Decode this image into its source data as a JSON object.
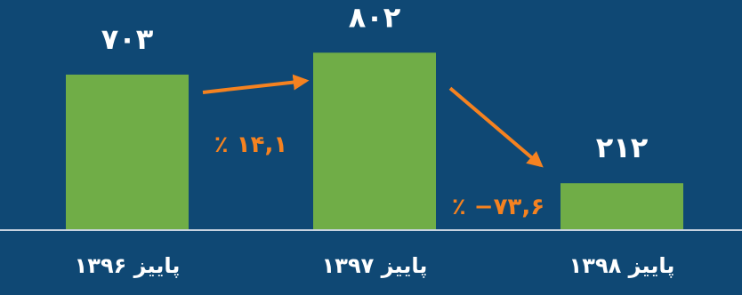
{
  "colors": {
    "background": "#0f4874",
    "bar": "#70ad47",
    "axis": "#c8d3e0",
    "text": "#ffffff",
    "arrow": "#f58220"
  },
  "chart_data": {
    "type": "bar",
    "title": "",
    "xlabel": "",
    "ylabel": "",
    "categories": [
      "پاییز ۱۳۹۶",
      "پاییز ۱۳۹۷",
      "پاییز ۱۳۹۸"
    ],
    "values": [
      703,
      802,
      212
    ],
    "value_labels": [
      "۷۰۳",
      "۸۰۲",
      "۲۱۲"
    ],
    "ylim": [
      0,
      1000
    ],
    "grid": false,
    "legend": "none",
    "annotations": [
      {
        "from": "پاییز ۱۳۹۶",
        "to": "پاییز ۱۳۹۷",
        "text": "٪ ۱۴,۱"
      },
      {
        "from": "پاییز ۱۳۹۷",
        "to": "پاییز ۱۳۹۸",
        "text": "٪ −۷۳,۶"
      }
    ]
  }
}
